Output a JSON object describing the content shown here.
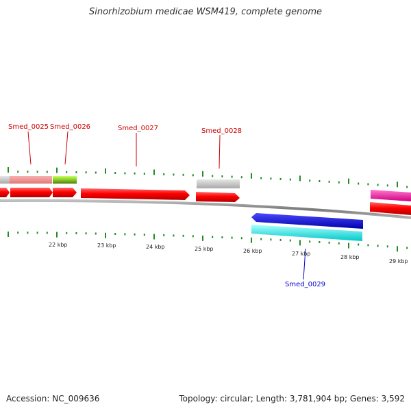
{
  "title": "Sinorhizobium medicae WSM419, complete genome",
  "footer": {
    "accession": "Accession: NC_009636",
    "stats": "Topology: circular; Length: 3,781,904 bp; Genes: 3,592"
  },
  "colors": {
    "tick": "#228B22",
    "forward_label": "#cc0000",
    "reverse_label": "#0000cc",
    "cds": "#ff0000",
    "backbone": "#808080"
  },
  "kbp_labels": [
    "22 kbp",
    "23 kbp",
    "24 kbp",
    "25 kbp",
    "26 kbp",
    "27 kbp",
    "28 kbp",
    "29 kbp"
  ],
  "gene_labels": [
    "Smed_0025",
    "Smed_0026",
    "Smed_0027",
    "Smed_0028",
    "Smed_0029"
  ]
}
